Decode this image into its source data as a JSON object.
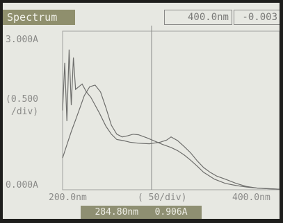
{
  "mode_label": "Spectrum",
  "header": {
    "wavelength": "400.0nm",
    "absorbance": "-0.003"
  },
  "y_axis": {
    "top": "3.000A",
    "scale_line1": "(0.500",
    "scale_line2": "/div)",
    "bottom": "0.000A"
  },
  "x_axis": {
    "left": "200.0nm",
    "scale": "( 50/div)",
    "right": "400.0nm"
  },
  "cursor": {
    "wavelength": "284.80nm",
    "absorbance": "0.906A"
  },
  "chart_data": {
    "type": "line",
    "xlim": [
      200,
      400
    ],
    "ylim": [
      0,
      3
    ],
    "series": [
      {
        "x": [
          200,
          202,
          204,
          206,
          208,
          210,
          212,
          215,
          218,
          222,
          226,
          230,
          234,
          240,
          245,
          250,
          256,
          262,
          270,
          280,
          290,
          296,
          300,
          306,
          312,
          318,
          324,
          330,
          336,
          342,
          350,
          360,
          370,
          380,
          390,
          400
        ],
        "y": [
          1.5,
          2.4,
          1.3,
          2.65,
          1.6,
          2.5,
          1.9,
          1.95,
          2.0,
          1.85,
          1.75,
          1.6,
          1.45,
          1.2,
          1.05,
          0.95,
          0.93,
          0.9,
          0.88,
          0.87,
          0.9,
          0.94,
          1.0,
          0.93,
          0.82,
          0.7,
          0.55,
          0.42,
          0.33,
          0.26,
          0.2,
          0.12,
          0.06,
          0.03,
          0.02,
          0.01
        ]
      },
      {
        "x": [
          200,
          204,
          208,
          212,
          216,
          220,
          225,
          230,
          235,
          240,
          245,
          250,
          255,
          260,
          265,
          270,
          278,
          285,
          292,
          300,
          306,
          312,
          318,
          324,
          330,
          340,
          350,
          360,
          370,
          380,
          390,
          400
        ],
        "y": [
          0.6,
          0.85,
          1.1,
          1.32,
          1.55,
          1.78,
          1.95,
          1.98,
          1.85,
          1.55,
          1.22,
          1.05,
          1.0,
          1.02,
          1.05,
          1.04,
          0.98,
          0.92,
          0.86,
          0.8,
          0.74,
          0.66,
          0.56,
          0.45,
          0.33,
          0.2,
          0.12,
          0.08,
          0.05,
          0.03,
          0.02,
          0.01
        ]
      }
    ]
  }
}
